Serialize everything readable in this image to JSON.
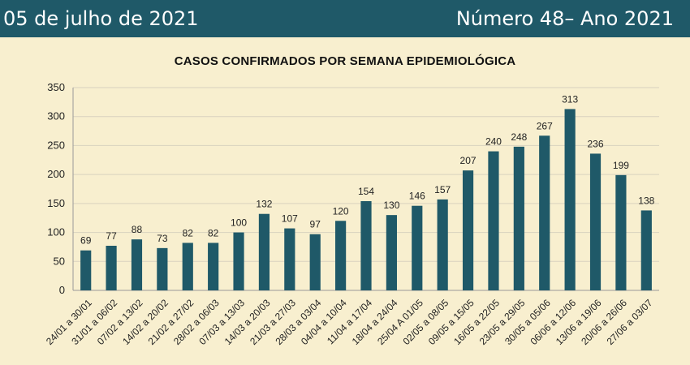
{
  "header": {
    "date": "05 de julho de 2021",
    "issue": "Número 48– Ano 2021"
  },
  "colors": {
    "header_bg": "#1f5968",
    "bar": "#1f5968",
    "background": "#f8efcf",
    "grid": "#d9d2bf"
  },
  "chart_data": {
    "type": "bar",
    "title": "CASOS CONFIRMADOS POR SEMANA EPIDEMIOLÓGICA",
    "xlabel": "",
    "ylabel": "",
    "ylim": [
      0,
      350
    ],
    "yticks": [
      0,
      50,
      100,
      150,
      200,
      250,
      300,
      350
    ],
    "grid": true,
    "data_labels": true,
    "categories": [
      "24/01 a 30/01",
      "31/01 a 06/02",
      "07/02 a 13/02",
      "14/02 a 20/02",
      "21/02 a 27/02",
      "28/02 a 06/03",
      "07/03 a 13/03",
      "14/03 a 20/03",
      "21/03 a 27/03",
      "28/03 a 03/04",
      "04/04 a 10/04",
      "11/04 a 17/04",
      "18/04 a 24/04",
      "25/04 A 01/05",
      "02/05 a 08/05",
      "09/05 a 15/05",
      "16/05 a 22/05",
      "23/05 a 29/05",
      "30/05 a 05/06",
      "06/06 a 12/06",
      "13/06 a 19/06",
      "20/06 a 26/06",
      "27/06 a 03/07"
    ],
    "values": [
      69,
      77,
      88,
      73,
      82,
      82,
      100,
      132,
      107,
      97,
      120,
      154,
      130,
      146,
      157,
      207,
      240,
      248,
      267,
      313,
      236,
      199,
      138
    ]
  }
}
